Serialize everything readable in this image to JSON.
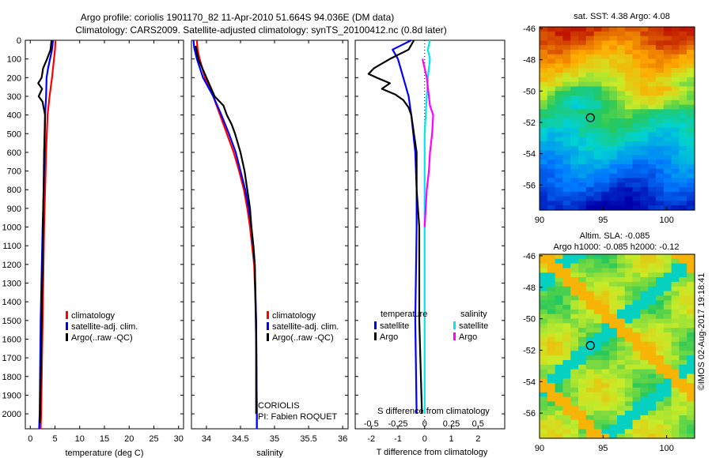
{
  "header": {
    "title_line1": "Argo profile: coriolis 1901170_82 11-Apr-2010 51.664S 94.036E (DM data)",
    "title_line2": "Climatology: CARS2009. Satellite-adjusted climatology: synTS_20100412.nc (0.8d later)"
  },
  "colors": {
    "climatology": "#ff0000",
    "satellite": "#0000ff",
    "argo": "#000000",
    "salinity_satellite": "#00e5ee",
    "salinity_argo": "#ff00ff"
  },
  "chart_data": [
    {
      "type": "line",
      "id": "temperature",
      "xlabel": "temperature (deg C)",
      "ylabel": "",
      "xlim": [
        -1,
        31
      ],
      "ylim": [
        2080,
        0
      ],
      "xticks": [
        0,
        5,
        10,
        15,
        20,
        25,
        30
      ],
      "yticks": [
        0,
        100,
        200,
        300,
        400,
        500,
        600,
        700,
        800,
        900,
        1000,
        1100,
        1200,
        1300,
        1400,
        1500,
        1600,
        1700,
        1800,
        1900,
        2000
      ],
      "legend": [
        "climatology",
        "satellite-adj. clim.",
        "Argo(..raw -QC)"
      ],
      "series": [
        {
          "name": "climatology",
          "color": "#ff0000",
          "depth": [
            0,
            50,
            100,
            200,
            300,
            400,
            600,
            800,
            1000,
            1500,
            2000,
            2080
          ],
          "values": [
            5.1,
            5.0,
            4.8,
            4.4,
            3.9,
            3.5,
            3.2,
            3.0,
            2.8,
            2.5,
            2.2,
            2.1
          ]
        },
        {
          "name": "satellite-adj. clim.",
          "color": "#0000ff",
          "depth": [
            0,
            50,
            100,
            150,
            200,
            300,
            400,
            600,
            800,
            1000,
            1500,
            2000,
            2080
          ],
          "values": [
            4.6,
            4.4,
            4.0,
            3.6,
            3.3,
            3.2,
            3.0,
            2.9,
            2.7,
            2.5,
            2.1,
            1.9,
            1.8
          ]
        },
        {
          "name": "Argo(..raw -QC)",
          "color": "#000000",
          "depth": [
            0,
            50,
            100,
            150,
            200,
            230,
            260,
            300,
            330,
            360,
            400,
            500,
            600,
            800,
            1000,
            1500,
            2000,
            2050
          ],
          "values": [
            4.3,
            4.1,
            3.4,
            2.6,
            2.3,
            1.6,
            2.4,
            1.7,
            2.5,
            2.7,
            3.0,
            2.9,
            2.8,
            2.7,
            2.6,
            2.3,
            2.0,
            1.9
          ]
        }
      ]
    },
    {
      "type": "line",
      "id": "salinity",
      "xlabel": "salinity",
      "ylabel": "",
      "xlim": [
        33.78,
        36.08
      ],
      "ylim": [
        2080,
        0
      ],
      "xticks": [
        34,
        34.5,
        35,
        35.5,
        36
      ],
      "xtick_labels": [
        "34",
        "34.5",
        "35",
        "35.5",
        "36"
      ],
      "legend": [
        "climatology",
        "satellite-adj. clim.",
        "Argo(..raw -QC)"
      ],
      "annotations": [
        "CORIOLIS",
        "PI: Fabien ROQUET"
      ],
      "series": [
        {
          "name": "climatology",
          "color": "#ff0000",
          "depth": [
            0,
            50,
            100,
            200,
            300,
            400,
            500,
            600,
            700,
            800,
            900,
            1000,
            1200,
            1500,
            2000,
            2080
          ],
          "values": [
            33.86,
            33.87,
            33.9,
            33.98,
            34.1,
            34.2,
            34.3,
            34.4,
            34.48,
            34.55,
            34.6,
            34.64,
            34.7,
            34.73,
            34.74,
            34.74
          ]
        },
        {
          "name": "satellite-adj. clim.",
          "color": "#0000ff",
          "depth": [
            0,
            40,
            100,
            200,
            300,
            400,
            500,
            600,
            700,
            800,
            900,
            1000,
            1200,
            1500,
            2000,
            2080
          ],
          "values": [
            33.81,
            33.82,
            33.86,
            33.95,
            34.1,
            34.22,
            34.33,
            34.43,
            34.5,
            34.57,
            34.62,
            34.66,
            34.71,
            34.73,
            34.74,
            34.74
          ]
        },
        {
          "name": "Argo(..raw -QC)",
          "color": "#000000",
          "depth": [
            30,
            100,
            200,
            300,
            350,
            400,
            450,
            500,
            600,
            700,
            800,
            900,
            1000,
            1100,
            1200,
            1400,
            1600,
            1800,
            2000
          ],
          "values": [
            33.84,
            33.88,
            34.0,
            34.12,
            34.25,
            34.3,
            34.37,
            34.42,
            34.5,
            34.56,
            34.6,
            34.64,
            34.66,
            34.69,
            34.71,
            34.72,
            34.73,
            34.73,
            34.73
          ]
        }
      ]
    },
    {
      "type": "line",
      "id": "differences",
      "xlabel_top": "S difference from climatology",
      "xlabel": "T difference from climatology",
      "xlim": [
        -2.6,
        3.0
      ],
      "ylim": [
        2080,
        0
      ],
      "xticks_T": [
        -2,
        -1,
        0,
        1,
        2
      ],
      "xticks_S": [
        -0.5,
        -0.25,
        0,
        0.25,
        0.5
      ],
      "xtick_labels_S": [
        "-0.5",
        "-0.25",
        "0",
        "0.25",
        "0.5"
      ],
      "legend_temperature_title": "temperature",
      "legend_salinity_title": "salinity",
      "legend_temperature": [
        "satellite",
        "Argo"
      ],
      "legend_salinity": [
        "satellite",
        "Argo"
      ],
      "series": [
        {
          "name": "T satellite",
          "color": "#0000ff",
          "depth": [
            0,
            50,
            100,
            150,
            200,
            300,
            400,
            600,
            800,
            1000,
            1500,
            2000
          ],
          "values": [
            -0.5,
            -1.2,
            -1.0,
            -0.9,
            -0.8,
            -0.6,
            -0.5,
            -0.35,
            -0.3,
            -0.3,
            -0.35,
            -0.3
          ]
        },
        {
          "name": "T Argo",
          "color": "#000000",
          "depth": [
            0,
            50,
            100,
            150,
            180,
            200,
            230,
            260,
            290,
            320,
            360,
            400,
            600,
            800,
            1000,
            1500,
            2000
          ],
          "values": [
            -0.4,
            -0.6,
            -1.3,
            -1.9,
            -2.1,
            -1.8,
            -1.3,
            -1.6,
            -1.1,
            -0.8,
            -0.6,
            -0.5,
            -0.3,
            -0.3,
            -0.2,
            -0.2,
            -0.1
          ]
        },
        {
          "name": "S satellite",
          "color": "#00e5ee",
          "depth": [
            0,
            50,
            100,
            200,
            300,
            400,
            500,
            600,
            800,
            1000,
            1500,
            2000
          ],
          "values": [
            0.05,
            0.03,
            0.05,
            0.03,
            0.02,
            0.01,
            0.0,
            0.0,
            0.0,
            0.0,
            0.0,
            0.0
          ]
        },
        {
          "name": "S Argo",
          "color": "#ff00ff",
          "depth": [
            100,
            150,
            200,
            250,
            300,
            350,
            400,
            500,
            600,
            700,
            800,
            900,
            1000
          ],
          "values": [
            -0.02,
            0.0,
            0.02,
            0.03,
            0.04,
            0.05,
            0.08,
            0.07,
            0.05,
            0.04,
            0.02,
            0.01,
            0.0
          ]
        }
      ]
    },
    {
      "type": "heatmap",
      "id": "sst-map",
      "title": "sat. SST: 4.38  Argo: 4.08",
      "xlim": [
        90.0,
        102.2
      ],
      "ylim": [
        -57.6,
        -45.9
      ],
      "xticks": [
        90,
        95,
        100
      ],
      "yticks": [
        -46,
        -48,
        -50,
        -52,
        -54,
        -56
      ],
      "marker": {
        "lon": 94.0,
        "lat": -51.7
      }
    },
    {
      "type": "heatmap",
      "id": "sla-map",
      "title": "Altim. SLA: -0.085",
      "subtitle": "Argo h1000: -0.085 h2000: -0.12",
      "xlim": [
        90.0,
        102.2
      ],
      "ylim": [
        -57.6,
        -45.9
      ],
      "xticks": [
        90,
        95,
        100
      ],
      "yticks": [
        -46,
        -48,
        -50,
        -52,
        -54,
        -56
      ],
      "marker": {
        "lon": 94.0,
        "lat": -51.7
      }
    }
  ],
  "footer": {
    "credit": "©IMOS 02-Aug-2017 19:18:41"
  }
}
